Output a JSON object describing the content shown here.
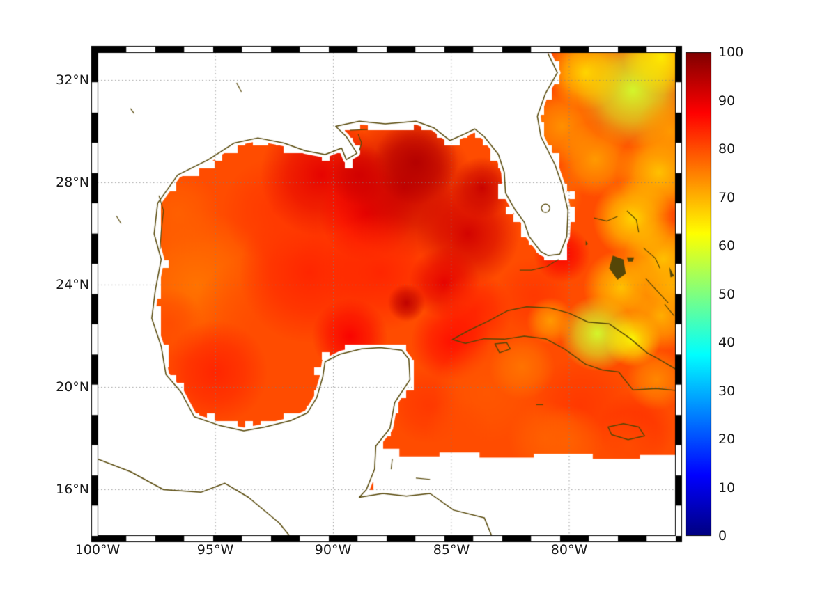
{
  "figure": {
    "type": "geographic-heatmap",
    "description": "Gulf of Mexico / western Atlantic / Caribbean field map with coastlines and jet colorbar",
    "background": "#ffffff"
  },
  "axes": {
    "x_ticks": [
      "100°W",
      "95°W",
      "90°W",
      "85°W",
      "80°W"
    ],
    "y_ticks": [
      "32°N",
      "28°N",
      "24°N",
      "20°N",
      "16°N"
    ]
  },
  "colorbar": {
    "labels": [
      "100",
      "90",
      "80",
      "70",
      "60",
      "50",
      "40",
      "30",
      "20",
      "10",
      "0"
    ],
    "min": 0,
    "max": 100,
    "colormap": "jet"
  },
  "chart_data": {
    "type": "heatmap",
    "title": "",
    "extent": {
      "lon_min": -100,
      "lon_max": -75.48,
      "lat_min": 14.19,
      "lat_max": 33.1
    },
    "grid_lons": [
      -95,
      -90,
      -85,
      -80
    ],
    "grid_lats": [
      16,
      20,
      24,
      28,
      32
    ],
    "colorbar_range": [
      0,
      100
    ],
    "colorbar_ticks": [
      0,
      10,
      20,
      30,
      40,
      50,
      60,
      70,
      80,
      90,
      100
    ],
    "colormap": "jet",
    "colormap_stops": [
      [
        "#800000",
        0
      ],
      [
        "#ff0000",
        0.125
      ],
      [
        "#ffff00",
        0.375
      ],
      [
        "#00ffff",
        0.625
      ],
      [
        "#0000ff",
        0.875
      ],
      [
        "#000080",
        1
      ]
    ],
    "coastline_color": "#554607",
    "grid_color": "rgba(130,130,130,0.8)",
    "field": {
      "base": 80,
      "blobs": [
        [
          -95.8,
          24.0,
          3.2,
          76
        ],
        [
          -93.0,
          22.5,
          3.0,
          80
        ],
        [
          -91.0,
          24.5,
          3.0,
          84
        ],
        [
          -92.5,
          26.9,
          2.2,
          82
        ],
        [
          -96.6,
          26.8,
          1.8,
          78
        ],
        [
          -97.0,
          22.5,
          1.5,
          80
        ],
        [
          -90.5,
          28.3,
          2.6,
          90
        ],
        [
          -88.6,
          26.8,
          2.0,
          88
        ],
        [
          -87.0,
          27.8,
          3.0,
          93
        ],
        [
          -86.5,
          28.8,
          1.8,
          95
        ],
        [
          -88.9,
          28.3,
          1.3,
          92
        ],
        [
          -84.3,
          26.0,
          2.2,
          92
        ],
        [
          -83.7,
          27.8,
          1.3,
          93
        ],
        [
          -88.0,
          24.5,
          2.5,
          84
        ],
        [
          -95.0,
          20.6,
          2.2,
          84
        ],
        [
          -89.3,
          22.0,
          1.6,
          88
        ],
        [
          -85.3,
          24.1,
          1.5,
          90
        ],
        [
          -86.9,
          23.3,
          0.8,
          94
        ],
        [
          -84.0,
          23.0,
          1.6,
          84
        ],
        [
          -81.5,
          23.6,
          1.6,
          82
        ],
        [
          -80.3,
          25.2,
          1.2,
          88
        ],
        [
          -85.0,
          21.8,
          1.7,
          86
        ],
        [
          -86.0,
          19.3,
          1.6,
          82
        ],
        [
          -83.5,
          19.8,
          2.2,
          79
        ],
        [
          -79.5,
          19.3,
          2.0,
          82
        ],
        [
          -77.2,
          18.4,
          1.6,
          83
        ],
        [
          -81.0,
          18.0,
          1.6,
          78
        ],
        [
          -78.8,
          22.1,
          1.6,
          58
        ],
        [
          -77.3,
          21.9,
          1.2,
          62
        ],
        [
          -80.8,
          22.6,
          1.0,
          72
        ],
        [
          -77.8,
          23.9,
          1.6,
          68
        ],
        [
          -76.1,
          22.8,
          1.5,
          70
        ],
        [
          -76.0,
          25.0,
          1.7,
          68
        ],
        [
          -77.3,
          26.6,
          1.7,
          66
        ],
        [
          -76.2,
          28.4,
          1.8,
          68
        ],
        [
          -77.3,
          31.6,
          2.4,
          58
        ],
        [
          -76.1,
          32.9,
          1.6,
          64
        ],
        [
          -79.3,
          32.3,
          1.6,
          66
        ],
        [
          -80.3,
          30.2,
          1.6,
          73
        ],
        [
          -78.9,
          28.9,
          1.6,
          72
        ],
        [
          -80.7,
          27.5,
          1.3,
          76
        ],
        [
          -82.0,
          20.8,
          1.4,
          76
        ],
        [
          -84.7,
          18.3,
          1.4,
          80
        ],
        [
          -80.0,
          17.9,
          1.5,
          78
        ],
        [
          -76.3,
          20.3,
          1.3,
          74
        ],
        [
          -75.7,
          30.0,
          1.5,
          72
        ],
        [
          -75.6,
          24.0,
          1.2,
          70
        ],
        [
          -77.5,
          17.7,
          1.5,
          80
        ]
      ]
    },
    "masks": {
      "south_cut": [
        [
          -88.3,
          17.6
        ],
        [
          -87.2,
          17.6
        ],
        [
          -87.2,
          17.3
        ],
        [
          -85.5,
          17.3
        ],
        [
          -85.5,
          17.45
        ],
        [
          -83.8,
          17.45
        ],
        [
          -83.8,
          17.25
        ],
        [
          -81.5,
          17.25
        ],
        [
          -81.5,
          17.4
        ],
        [
          -79.0,
          17.4
        ],
        [
          -79.0,
          17.2
        ],
        [
          -77.0,
          17.2
        ],
        [
          -77.0,
          17.35
        ],
        [
          -75.0,
          17.35
        ],
        [
          -75.0,
          13.6
        ],
        [
          -88.3,
          13.6
        ]
      ]
    },
    "coastlines": {
      "na_mex": [
        [
          -80.9,
          33.05
        ],
        [
          -80.5,
          32.3
        ],
        [
          -81.0,
          31.5
        ],
        [
          -81.35,
          30.6
        ],
        [
          -81.2,
          29.8
        ],
        [
          -80.6,
          28.7
        ],
        [
          -80.3,
          27.9
        ],
        [
          -80.05,
          26.9
        ],
        [
          -80.1,
          25.9
        ],
        [
          -80.4,
          25.2
        ],
        [
          -80.9,
          25.15
        ],
        [
          -81.2,
          25.3
        ],
        [
          -81.7,
          25.9
        ],
        [
          -81.9,
          26.45
        ],
        [
          -82.3,
          26.95
        ],
        [
          -82.7,
          27.6
        ],
        [
          -82.75,
          28.4
        ],
        [
          -83.0,
          29.1
        ],
        [
          -83.6,
          29.8
        ],
        [
          -84.0,
          30.1
        ],
        [
          -84.45,
          29.9
        ],
        [
          -85.05,
          29.65
        ],
        [
          -85.75,
          30.15
        ],
        [
          -86.5,
          30.4
        ],
        [
          -87.8,
          30.3
        ],
        [
          -88.9,
          30.4
        ],
        [
          -89.9,
          30.2
        ],
        [
          -89.45,
          29.8
        ],
        [
          -89.0,
          29.15
        ],
        [
          -89.45,
          28.9
        ],
        [
          -89.65,
          29.35
        ],
        [
          -90.35,
          29.1
        ],
        [
          -91.2,
          29.25
        ],
        [
          -92.1,
          29.55
        ],
        [
          -93.2,
          29.75
        ],
        [
          -94.2,
          29.55
        ],
        [
          -95.3,
          28.9
        ],
        [
          -96.6,
          28.3
        ],
        [
          -97.45,
          27.2
        ],
        [
          -97.6,
          26.0
        ],
        [
          -97.3,
          25.0
        ],
        [
          -97.55,
          23.8
        ],
        [
          -97.7,
          22.7
        ],
        [
          -97.3,
          21.6
        ],
        [
          -97.1,
          20.5
        ],
        [
          -96.45,
          19.8
        ],
        [
          -95.9,
          18.85
        ],
        [
          -94.8,
          18.5
        ],
        [
          -93.8,
          18.3
        ],
        [
          -92.9,
          18.45
        ],
        [
          -91.8,
          18.7
        ],
        [
          -91.1,
          19.0
        ],
        [
          -90.7,
          19.6
        ],
        [
          -90.45,
          20.4
        ],
        [
          -90.35,
          21.0
        ],
        [
          -89.7,
          21.3
        ],
        [
          -88.8,
          21.5
        ],
        [
          -88.0,
          21.55
        ],
        [
          -87.1,
          21.45
        ],
        [
          -86.8,
          21.1
        ],
        [
          -86.75,
          20.3
        ],
        [
          -87.4,
          19.4
        ],
        [
          -87.6,
          18.4
        ],
        [
          -88.2,
          17.7
        ],
        [
          -88.25,
          16.8
        ],
        [
          -88.6,
          16.0
        ],
        [
          -88.9,
          15.7
        ],
        [
          -87.9,
          15.85
        ],
        [
          -86.9,
          15.75
        ],
        [
          -85.9,
          15.85
        ],
        [
          -84.9,
          15.2
        ],
        [
          -83.6,
          14.9
        ],
        [
          -83.2,
          14.0
        ]
      ],
      "pacific": [
        [
          -100,
          17.2
        ],
        [
          -98.6,
          16.7
        ],
        [
          -97.2,
          16.0
        ],
        [
          -95.6,
          15.9
        ],
        [
          -94.6,
          16.25
        ],
        [
          -93.6,
          15.7
        ],
        [
          -92.3,
          14.7
        ],
        [
          -91.6,
          13.9
        ]
      ],
      "cuba": [
        [
          -75.5,
          20.72
        ],
        [
          -76.1,
          21.05
        ],
        [
          -76.7,
          21.35
        ],
        [
          -77.4,
          21.9
        ],
        [
          -78.3,
          22.48
        ],
        [
          -79.2,
          22.55
        ],
        [
          -80.0,
          22.9
        ],
        [
          -80.8,
          23.1
        ],
        [
          -81.8,
          23.15
        ],
        [
          -82.6,
          23.0
        ],
        [
          -83.4,
          22.6
        ],
        [
          -84.2,
          22.25
        ],
        [
          -84.95,
          21.87
        ],
        [
          -84.4,
          21.72
        ],
        [
          -83.6,
          21.9
        ],
        [
          -82.75,
          21.88
        ],
        [
          -81.9,
          22.0
        ],
        [
          -81.0,
          21.9
        ],
        [
          -80.2,
          21.5
        ],
        [
          -79.3,
          20.9
        ],
        [
          -78.6,
          20.68
        ],
        [
          -77.9,
          20.6
        ],
        [
          -77.3,
          19.9
        ],
        [
          -76.3,
          19.95
        ],
        [
          -75.5,
          19.88
        ]
      ],
      "jamaica": [
        [
          -78.35,
          18.45
        ],
        [
          -77.7,
          18.58
        ],
        [
          -77.05,
          18.45
        ],
        [
          -76.8,
          18.1
        ],
        [
          -77.5,
          17.95
        ],
        [
          -78.2,
          18.15
        ]
      ],
      "isle_of_youth": [
        [
          -83.15,
          21.7
        ],
        [
          -82.65,
          21.75
        ],
        [
          -82.5,
          21.5
        ],
        [
          -82.95,
          21.35
        ]
      ],
      "lake_okeechobee": [
        -81.0,
        27.0
      ],
      "lines": [
        [
          [
            -78.95,
            26.62
          ],
          [
            -78.4,
            26.5
          ],
          [
            -77.95,
            26.68
          ]
        ],
        [
          [
            -77.55,
            26.9
          ],
          [
            -77.15,
            26.55
          ],
          [
            -77.05,
            26.05
          ]
        ],
        [
          [
            -76.85,
            25.45
          ],
          [
            -76.35,
            25.05
          ],
          [
            -76.15,
            24.65
          ]
        ],
        [
          [
            -76.75,
            24.25
          ],
          [
            -76.15,
            23.65
          ],
          [
            -75.8,
            23.3
          ]
        ],
        [
          [
            -75.95,
            23.25
          ],
          [
            -75.55,
            22.8
          ]
        ],
        [
          [
            -80.45,
            25.0
          ],
          [
            -80.95,
            24.72
          ],
          [
            -81.6,
            24.58
          ],
          [
            -82.1,
            24.58
          ]
        ],
        [
          [
            -97.4,
            27.5
          ],
          [
            -97.2,
            26.9
          ],
          [
            -97.3,
            26.1
          ],
          [
            -97.35,
            25.4
          ]
        ],
        [
          [
            -89.3,
            30.05
          ],
          [
            -88.55,
            30.08
          ]
        ],
        [
          [
            -88.95,
            29.9
          ],
          [
            -88.8,
            29.55
          ],
          [
            -88.9,
            29.25
          ]
        ],
        [
          [
            -87.5,
            17.2
          ],
          [
            -87.55,
            16.8
          ]
        ],
        [
          [
            -86.5,
            16.45
          ],
          [
            -85.9,
            16.4
          ]
        ],
        [
          [
            -81.4,
            19.32
          ],
          [
            -81.1,
            19.32
          ]
        ],
        [
          [
            -94.1,
            31.9
          ],
          [
            -93.9,
            31.55
          ]
        ],
        [
          [
            -99.2,
            26.7
          ],
          [
            -99.0,
            26.4
          ]
        ],
        [
          [
            -98.6,
            30.9
          ],
          [
            -98.45,
            30.7
          ]
        ]
      ],
      "filled_islands": [
        [
          [
            -78.15,
            25.15
          ],
          [
            -77.7,
            25.0
          ],
          [
            -77.6,
            24.45
          ],
          [
            -77.95,
            24.2
          ],
          [
            -78.3,
            24.65
          ]
        ],
        [
          [
            -77.55,
            25.08
          ],
          [
            -77.25,
            25.08
          ],
          [
            -77.3,
            24.92
          ],
          [
            -77.5,
            24.92
          ]
        ],
        [
          [
            -75.75,
            24.7
          ],
          [
            -75.55,
            24.35
          ],
          [
            -75.7,
            24.3
          ]
        ],
        [
          [
            -79.3,
            25.75
          ],
          [
            -79.2,
            25.6
          ],
          [
            -79.3,
            25.55
          ]
        ]
      ]
    }
  }
}
